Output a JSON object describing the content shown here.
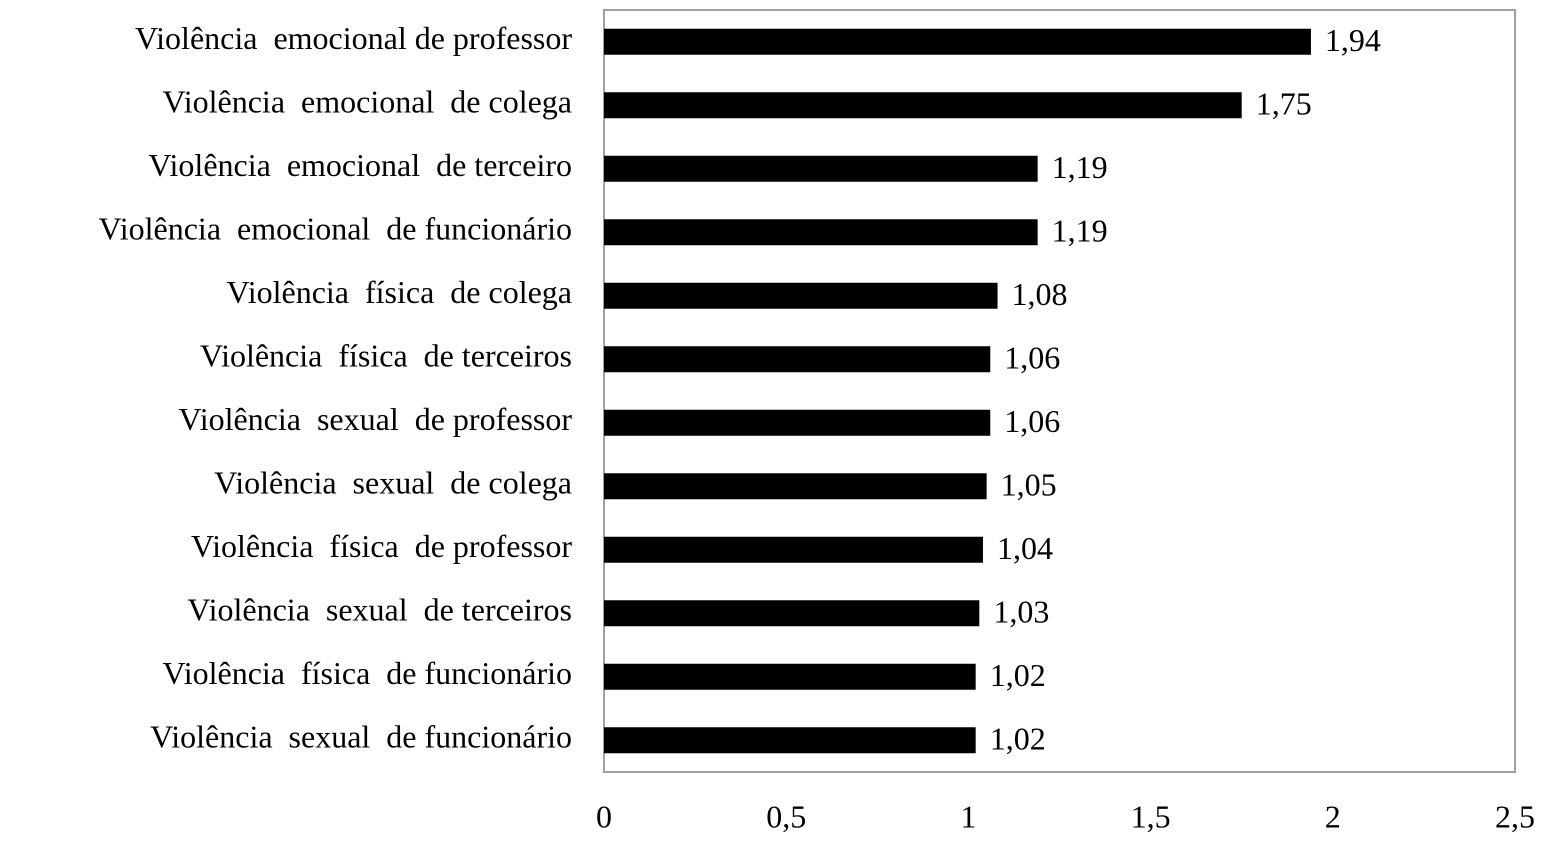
{
  "chart_data": {
    "type": "barh",
    "categories": [
      "Violência  emocional de professor",
      "Violência  emocional  de colega",
      "Violência  emocional  de terceiro",
      "Violência  emocional  de funcionário",
      "Violência  física  de colega",
      "Violência  física  de terceiros",
      "Violência  sexual  de professor",
      "Violência  sexual  de colega",
      "Violência  física  de professor",
      "Violência  sexual  de terceiros",
      "Violência  física  de funcionário",
      "Violência  sexual  de funcionário"
    ],
    "values": [
      1.94,
      1.75,
      1.19,
      1.19,
      1.08,
      1.06,
      1.06,
      1.05,
      1.04,
      1.03,
      1.02,
      1.02
    ],
    "value_labels": [
      "1,94",
      "1,75",
      "1,19",
      "1,19",
      "1,08",
      "1,06",
      "1,06",
      "1,05",
      "1,04",
      "1,03",
      "1,02",
      "1,02"
    ],
    "color": "#000000",
    "xlim": [
      0,
      2.5
    ],
    "xticks": [
      0,
      {
        "value": 0.5,
        "label": "0,5"
      },
      1,
      {
        "value": 1.5,
        "label": "1,5"
      },
      2,
      {
        "value": 2.5,
        "label": "2,5"
      }
    ],
    "grid": false
  }
}
